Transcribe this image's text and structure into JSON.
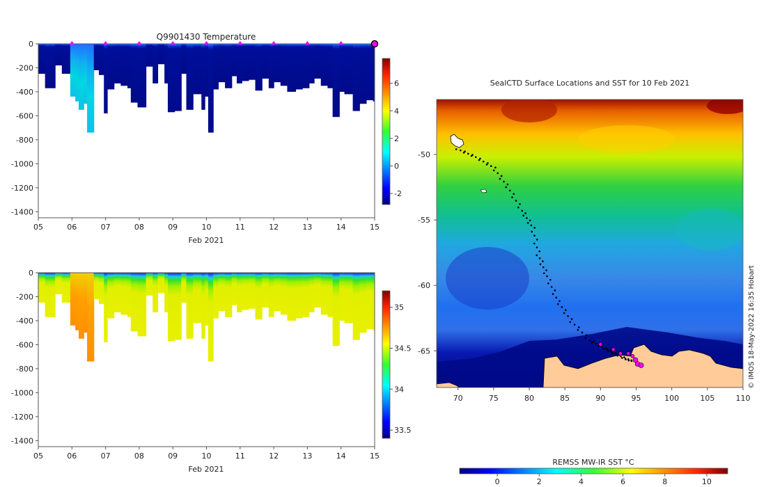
{
  "chart_data": [
    {
      "type": "heatmap",
      "title": "Q9901430  Temperature",
      "xlabel": "Feb 2021",
      "ylabel": "",
      "xlim": [
        5,
        15
      ],
      "ylim": [
        -1450,
        0
      ],
      "xticks": [
        "05",
        "06",
        "07",
        "08",
        "09",
        "10",
        "11",
        "12",
        "13",
        "14",
        "15"
      ],
      "yticks": [
        0,
        -200,
        -400,
        -600,
        -800,
        -1000,
        -1200,
        -1400
      ],
      "colorbar": {
        "range": [
          -2.8,
          7.8
        ],
        "ticks": [
          -2,
          0,
          2,
          4,
          6
        ]
      },
      "surface_markers": [
        6,
        7,
        8,
        9,
        10,
        11,
        12,
        13,
        14,
        15
      ],
      "profile_depths": [
        [
          5.0,
          250
        ],
        [
          5.2,
          370
        ],
        [
          5.5,
          180
        ],
        [
          5.7,
          250
        ],
        [
          5.95,
          440
        ],
        [
          6.1,
          480
        ],
        [
          6.2,
          550
        ],
        [
          6.35,
          500
        ],
        [
          6.45,
          740
        ],
        [
          6.65,
          220
        ],
        [
          6.8,
          260
        ],
        [
          6.95,
          580
        ],
        [
          7.05,
          380
        ],
        [
          7.25,
          330
        ],
        [
          7.45,
          350
        ],
        [
          7.65,
          370
        ],
        [
          7.75,
          490
        ],
        [
          7.95,
          530
        ],
        [
          8.2,
          190
        ],
        [
          8.4,
          330
        ],
        [
          8.55,
          170
        ],
        [
          8.75,
          330
        ],
        [
          8.85,
          570
        ],
        [
          9.05,
          560
        ],
        [
          9.25,
          250
        ],
        [
          9.4,
          550
        ],
        [
          9.6,
          420
        ],
        [
          9.85,
          550
        ],
        [
          9.95,
          440
        ],
        [
          10.05,
          740
        ],
        [
          10.2,
          380
        ],
        [
          10.35,
          320
        ],
        [
          10.55,
          370
        ],
        [
          10.75,
          270
        ],
        [
          10.9,
          330
        ],
        [
          11.05,
          310
        ],
        [
          11.25,
          300
        ],
        [
          11.45,
          390
        ],
        [
          11.65,
          290
        ],
        [
          11.85,
          370
        ],
        [
          12.0,
          320
        ],
        [
          12.2,
          350
        ],
        [
          12.4,
          400
        ],
        [
          12.65,
          380
        ],
        [
          12.85,
          370
        ],
        [
          13.05,
          330
        ],
        [
          13.2,
          290
        ],
        [
          13.4,
          350
        ],
        [
          13.6,
          370
        ],
        [
          13.75,
          610
        ],
        [
          13.95,
          400
        ],
        [
          14.1,
          420
        ],
        [
          14.35,
          560
        ],
        [
          14.55,
          500
        ],
        [
          14.75,
          470
        ],
        [
          14.95,
          480
        ]
      ]
    },
    {
      "type": "heatmap",
      "title": "",
      "xlabel": "Feb 2021",
      "ylabel": "",
      "xlim": [
        5,
        15
      ],
      "ylim": [
        -1450,
        0
      ],
      "xticks": [
        "05",
        "06",
        "07",
        "08",
        "09",
        "10",
        "11",
        "12",
        "13",
        "14",
        "15"
      ],
      "yticks": [
        0,
        -200,
        -400,
        -600,
        -800,
        -1000,
        -1200,
        -1400
      ],
      "colorbar": {
        "range": [
          33.4,
          35.2
        ],
        "ticks": [
          33.5,
          34,
          34.5,
          35
        ]
      }
    },
    {
      "type": "heatmap",
      "title": "SealCTD Surface Locations and SST for 10 Feb 2021",
      "xlim": [
        67,
        110
      ],
      "ylim": [
        -67.8,
        -45.8
      ],
      "xticks": [
        70,
        75,
        80,
        85,
        90,
        95,
        100,
        105,
        110
      ],
      "yticks": [
        -50,
        -55,
        -60,
        -65
      ],
      "colorbar": {
        "label": "REMSS MW-IR SST °C",
        "range": [
          -1.8,
          11
        ],
        "ticks": [
          0,
          2,
          4,
          6,
          8,
          10
        ]
      },
      "track": [
        [
          70.0,
          -49.6
        ],
        [
          72.5,
          -50.2
        ],
        [
          75.0,
          -51.0
        ],
        [
          77.0,
          -52.5
        ],
        [
          79.0,
          -54.3
        ],
        [
          80.5,
          -55.6
        ],
        [
          81.3,
          -57.7
        ],
        [
          82.5,
          -59.3
        ],
        [
          84.0,
          -61.2
        ],
        [
          86.0,
          -62.8
        ],
        [
          88.5,
          -64.2
        ],
        [
          90.5,
          -64.8
        ],
        [
          92.0,
          -65.2
        ],
        [
          93.5,
          -65.6
        ],
        [
          94.5,
          -65.8
        ]
      ],
      "recent_positions": [
        [
          90.0,
          -64.5
        ],
        [
          91.8,
          -64.9
        ],
        [
          92.8,
          -65.2
        ],
        [
          93.9,
          -65.2
        ],
        [
          94.5,
          -65.4
        ],
        [
          94.9,
          -65.7
        ],
        [
          95.2,
          -66.0
        ],
        [
          95.7,
          -66.1
        ]
      ],
      "credit": "© IMOS 18-May-2022 16:35 Hobart"
    }
  ],
  "colors": {
    "marker": "#ff00ff",
    "land": "#ffcc99",
    "track": "#000000"
  }
}
